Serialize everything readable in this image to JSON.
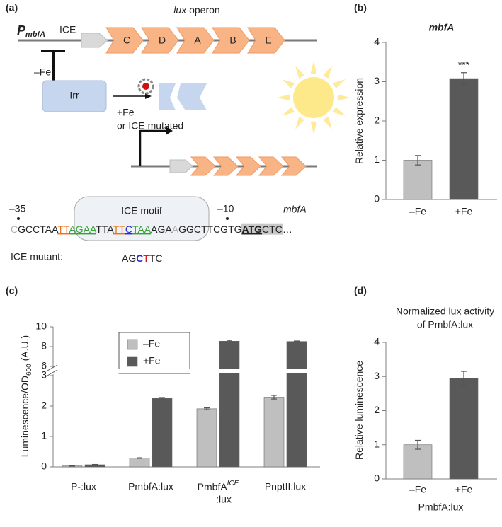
{
  "diagram": {
    "label": "(a)",
    "promoter": "P",
    "promoter_sub": "mbfA",
    "ice": "ICE",
    "operon": "lux",
    "operon_rest": " operon",
    "genes": [
      "C",
      "D",
      "A",
      "B",
      "E"
    ],
    "minus_fe": "–Fe",
    "irr": "Irr",
    "plus_fe": "+Fe",
    "or_mutated": "or ICE mutated",
    "minus35": "–35",
    "motif": "ICE motif",
    "minus10": "–10",
    "gene": "mbfA",
    "sequence": [
      {
        "text": "C",
        "color": "#b0b0b0"
      },
      {
        "text": "GCCTAA",
        "color": "#222222"
      },
      {
        "text": "TT",
        "color": "#e8731c",
        "underline": true
      },
      {
        "text": "AGAA",
        "color": "#3aa13a",
        "underline": true
      },
      {
        "text": "TTA",
        "color": "#222222"
      },
      {
        "text": "TT",
        "color": "#e8731c",
        "underline": true
      },
      {
        "text": "C",
        "color": "#2a2ad0",
        "underline": true
      },
      {
        "text": "TAA",
        "color": "#3aa13a",
        "underline": true
      },
      {
        "text": "AGA",
        "color": "#222222"
      },
      {
        "text": "A",
        "color": "#b0b0b0"
      },
      {
        "text": "GGCTTCGTG",
        "color": "#222222"
      },
      {
        "text": "ATG",
        "color": "#222222",
        "underline": true,
        "bold": true,
        "highlight": true
      },
      {
        "text": "CTC",
        "color": "#222222",
        "highlight": true
      },
      {
        "text": "…",
        "color": "#222222"
      }
    ],
    "mutant_label": "ICE mutant:",
    "mutant": [
      {
        "text": "AG",
        "color": "#222222"
      },
      {
        "text": "C",
        "color": "#2a2ad0",
        "bold": true
      },
      {
        "text": "T",
        "color": "#e01818",
        "bold": true
      },
      {
        "text": "TC",
        "color": "#222222"
      }
    ]
  },
  "chart_data": [
    {
      "type": "bar",
      "panel_label": "(b)",
      "title": "mbfA",
      "ylabel": "Relative expression",
      "categories": [
        "–Fe",
        "+Fe"
      ],
      "values": [
        1.0,
        3.08
      ],
      "errors": [
        0.12,
        0.15
      ],
      "colors": [
        "#bfbfbf",
        "#595959"
      ],
      "annotation": "***",
      "ylim": [
        0,
        4
      ],
      "yticks": [
        0,
        1,
        2,
        3,
        4
      ]
    },
    {
      "type": "bar",
      "panel_label": "(c)",
      "ylabel": "Luminescence/OD",
      "ylabel_sub": "600",
      "ylabel_end": "(A.U.)",
      "categories": [
        "P-:lux",
        "PmbfA:lux",
        {
          "label": "PmbfA",
          "sup": "ICE",
          "line2": ":lux"
        },
        "PnptII:lux"
      ],
      "series": [
        {
          "name": "–Fe",
          "color": "#bfbfbf",
          "values": [
            0.03,
            0.29,
            1.91,
            2.29
          ],
          "errors": [
            0.005,
            0.01,
            0.03,
            0.06
          ]
        },
        {
          "name": "+Fe",
          "color": "#595959",
          "values": [
            0.07,
            2.25,
            8.55,
            8.52
          ],
          "errors": [
            0.01,
            0.03,
            0.08,
            0.05
          ]
        }
      ],
      "ylim": [
        0,
        10
      ],
      "ybreak": [
        3,
        6
      ],
      "yticks": [
        0,
        1,
        2,
        3,
        6,
        8,
        10
      ]
    },
    {
      "type": "bar",
      "panel_label": "(d)",
      "title": [
        "Normalized lux activity",
        "of PmbfA:lux"
      ],
      "ylabel": "Relative luminescence",
      "xlabel": "PmbfA:lux",
      "categories": [
        "–Fe",
        "+Fe"
      ],
      "values": [
        1.0,
        2.95
      ],
      "errors": [
        0.13,
        0.2
      ],
      "colors": [
        "#bfbfbf",
        "#595959"
      ],
      "ylim": [
        0,
        4
      ],
      "yticks": [
        0,
        1,
        2,
        3,
        4
      ]
    }
  ]
}
